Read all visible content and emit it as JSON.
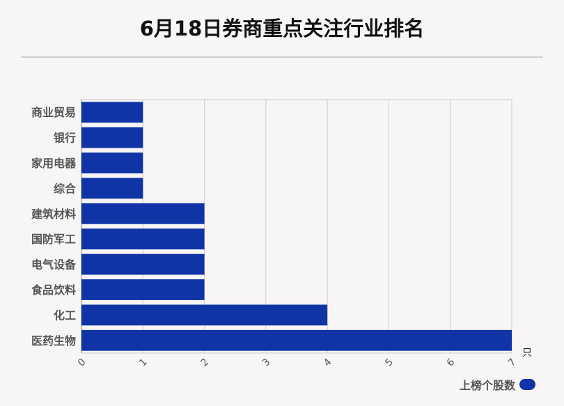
{
  "chart_data": {
    "type": "bar",
    "orientation": "horizontal",
    "title": "6月18日券商重点关注行业排名",
    "categories": [
      "商业贸易",
      "银行",
      "家用电器",
      "综合",
      "建筑材料",
      "国防军工",
      "电气设备",
      "食品饮料",
      "化工",
      "医药生物"
    ],
    "series": [
      {
        "name": "上榜个股数",
        "values": [
          1,
          1,
          1,
          1,
          2,
          2,
          2,
          2,
          4,
          7
        ]
      }
    ],
    "xlim": [
      0,
      7
    ],
    "x_ticks": [
      "0",
      "1",
      "2",
      "3",
      "4",
      "5",
      "6",
      "7"
    ],
    "x_unit": "只",
    "grid": true,
    "legend_position": "bottom-right",
    "colors": {
      "bar": "#1034a6",
      "grid": "#cccccc",
      "axis": "#888888"
    }
  }
}
